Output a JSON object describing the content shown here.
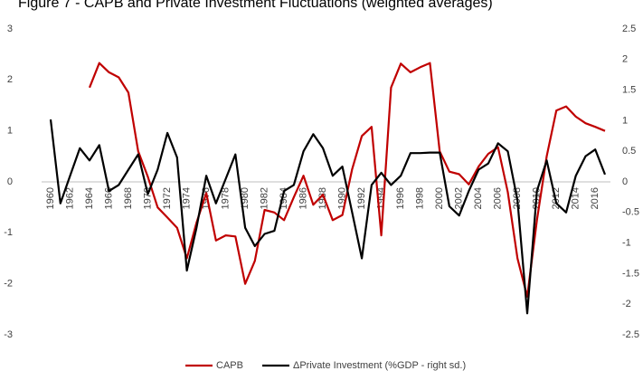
{
  "chart_data": {
    "type": "line",
    "title": "Figure 7 - CAPB and Private Investment Fluctuations (weighted averages)",
    "x": [
      1960,
      1961,
      1962,
      1963,
      1964,
      1965,
      1966,
      1967,
      1968,
      1969,
      1970,
      1971,
      1972,
      1973,
      1974,
      1975,
      1976,
      1977,
      1978,
      1979,
      1980,
      1981,
      1982,
      1983,
      1984,
      1985,
      1986,
      1987,
      1988,
      1989,
      1990,
      1991,
      1992,
      1993,
      1994,
      1995,
      1996,
      1997,
      1998,
      1999,
      2000,
      2001,
      2002,
      2003,
      2004,
      2005,
      2006,
      2007,
      2008,
      2009,
      2010,
      2011,
      2012,
      2013,
      2014,
      2015,
      2016,
      2017
    ],
    "xlim": [
      1960,
      2017
    ],
    "xticks": [
      1960,
      1962,
      1964,
      1966,
      1968,
      1970,
      1972,
      1974,
      1976,
      1978,
      1980,
      1982,
      1984,
      1986,
      1988,
      1990,
      1992,
      1994,
      1996,
      1998,
      2000,
      2002,
      2004,
      2006,
      2008,
      2010,
      2012,
      2014,
      2016
    ],
    "ylim": [
      -3,
      3
    ],
    "yticks": [
      -3,
      -2,
      -1,
      0,
      1,
      2,
      3
    ],
    "y2lim": [
      -2.5,
      2.5
    ],
    "y2ticks": [
      -2.5,
      -2,
      -1.5,
      -1,
      -0.5,
      0,
      0.5,
      1,
      1.5,
      2,
      2.5
    ],
    "series": [
      {
        "name": "CAPB",
        "color": "#c00000",
        "values": [
          null,
          null,
          null,
          null,
          1.85,
          2.33,
          2.15,
          2.05,
          1.75,
          0.6,
          0.1,
          -0.5,
          -0.7,
          -0.9,
          -1.5,
          -0.8,
          -0.22,
          -1.15,
          -1.05,
          -1.07,
          -2.0,
          -1.55,
          -0.55,
          -0.6,
          -0.75,
          -0.3,
          0.12,
          -0.45,
          -0.25,
          -0.75,
          -0.65,
          0.25,
          0.9,
          1.08,
          -1.05,
          1.85,
          2.32,
          2.15,
          2.25,
          2.33,
          0.6,
          0.2,
          0.15,
          -0.05,
          0.3,
          0.55,
          0.68,
          -0.2,
          -1.5,
          -2.25,
          -0.75,
          0.5,
          1.4,
          1.48,
          1.28,
          1.15,
          1.08,
          1.0
        ]
      },
      {
        "name": "ΔPrivate Investment (%GDP - right sd.)",
        "color": "#000000",
        "axis": "y2",
        "values": [
          1.02,
          -0.35,
          0.1,
          0.55,
          0.35,
          0.6,
          -0.15,
          -0.05,
          0.2,
          0.45,
          -0.2,
          0.2,
          0.8,
          0.4,
          -1.45,
          -0.75,
          0.1,
          -0.35,
          0.05,
          0.45,
          -0.75,
          -1.05,
          -0.85,
          -0.8,
          -0.15,
          -0.05,
          0.5,
          0.78,
          0.55,
          0.1,
          0.25,
          -0.5,
          -1.25,
          -0.05,
          0.15,
          -0.05,
          0.1,
          0.47,
          0.47,
          0.48,
          0.48,
          -0.4,
          -0.55,
          -0.15,
          0.2,
          0.3,
          0.63,
          0.5,
          -0.3,
          -2.15,
          -0.15,
          0.35,
          -0.35,
          -0.5,
          0.1,
          0.42,
          0.53,
          0.12
        ]
      }
    ]
  }
}
